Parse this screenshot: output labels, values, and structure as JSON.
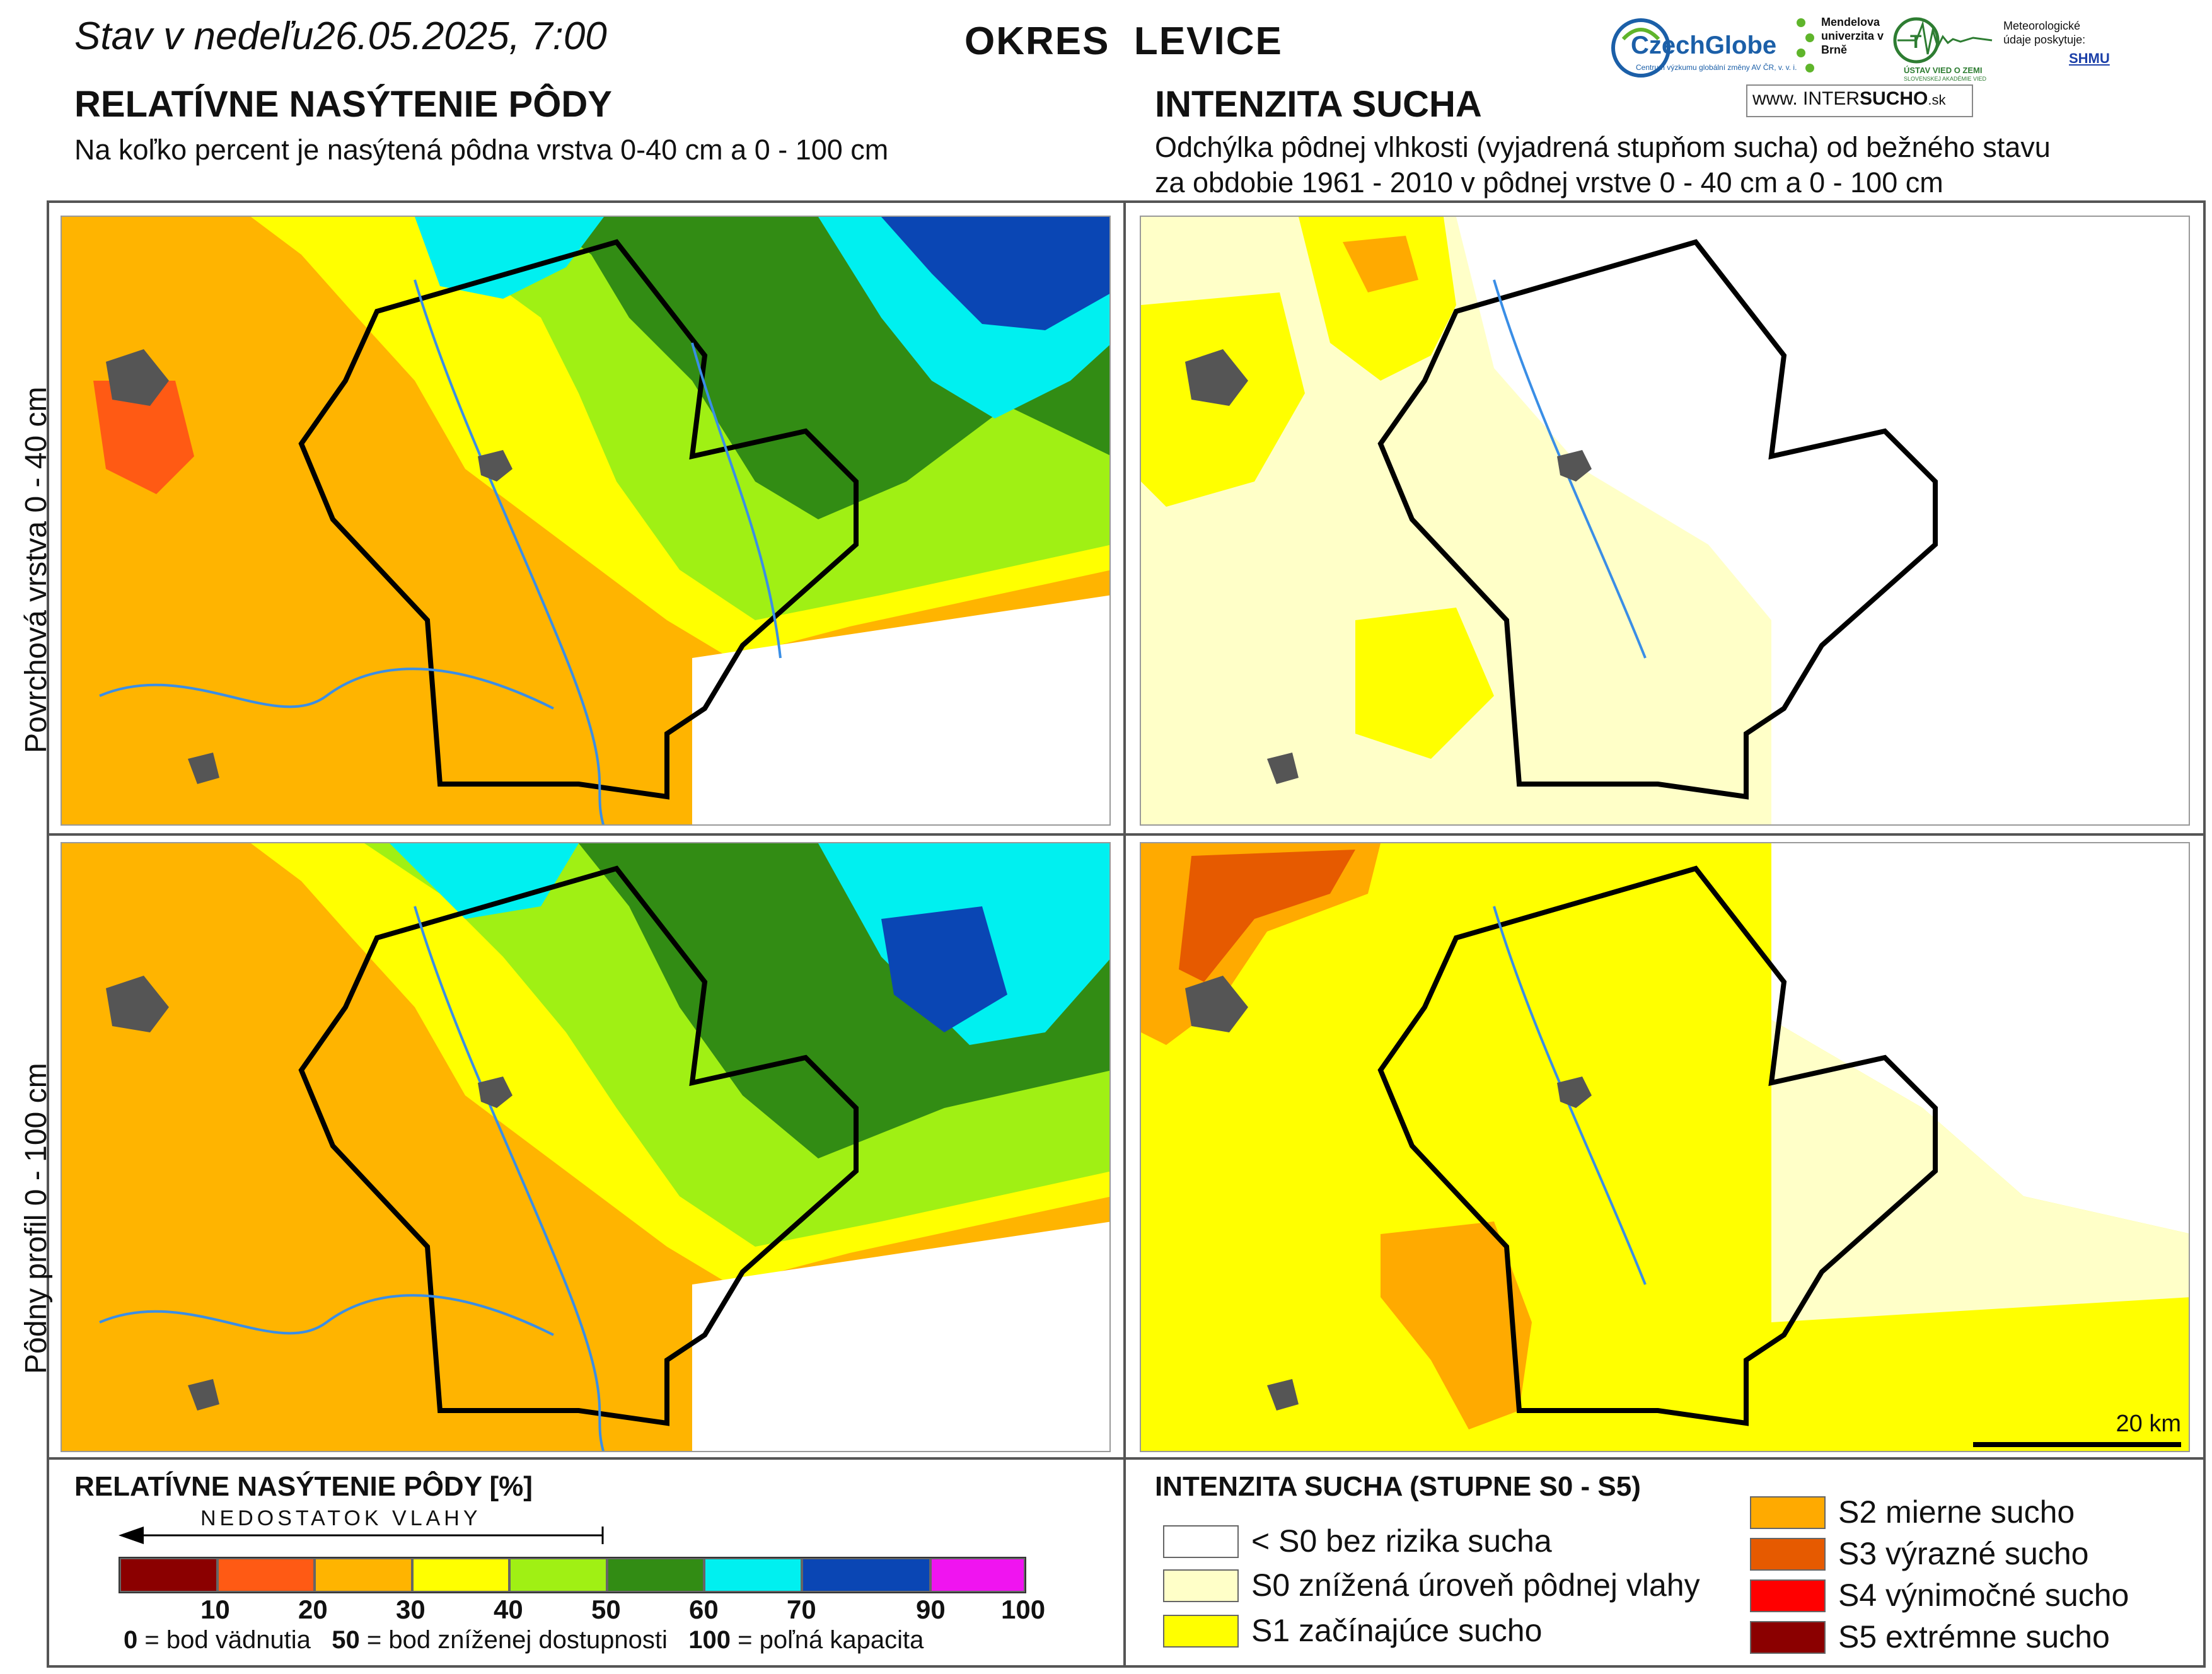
{
  "header": {
    "date_prefix": "Stav v nedeľu",
    "date_value": "26.05.2025, 7:00",
    "district": "OKRES  LEVICE"
  },
  "logos": {
    "czechglobe": "CzechGlobe",
    "czechglobe_sub": "Centrum výzkumu globální změny AV ČR, v. v. i.",
    "mendel": "Mendelova univerzita v Brně",
    "uvz": "ÚSTAV VIED O ZEMI",
    "uvz_sub": "SLOVENSKEJ AKADÉMIE VIED",
    "meteo": "Meteorologické údaje poskytuje:",
    "shmu": "SHMU",
    "intersucho_www": "www.",
    "intersucho_inter": "INTER",
    "intersucho_sucho": "SUCHO",
    "intersucho_sk": ".sk"
  },
  "left_section": {
    "title": "RELATÍVNE NASÝTENIE PÔDY",
    "subtitle": "Na koľko percent je nasýtená pôdna vrstva 0-40 cm a 0 - 100 cm"
  },
  "right_section": {
    "title": "INTENZITA SUCHA",
    "subtitle_line1": "Odchýlka pôdnej vlhkosti (vyjadrená stupňom sucha) od bežného stavu",
    "subtitle_line2": "za obdobie 1961 - 2010 v pôdnej vrstve 0 - 40 cm a 0 - 100 cm"
  },
  "row_labels": {
    "top": "Povrchová vrstva 0 - 40 cm",
    "bottom": "Pôdny profil 0 - 100 cm"
  },
  "scale_bar": {
    "label": "20 km"
  },
  "saturation_legend": {
    "title": "RELATÍVNE NASÝTENIE PÔDY [%]",
    "arrow_label": "NEDOSTATOK VLAHY",
    "bins": [
      {
        "color": "#8b0000"
      },
      {
        "color": "#ff5a14"
      },
      {
        "color": "#ffb400"
      },
      {
        "color": "#ffff00"
      },
      {
        "color": "#a0f014"
      },
      {
        "color": "#328c14"
      },
      {
        "color": "#00f0f0"
      },
      {
        "color": "#0a46b4"
      },
      {
        "color": "#f014f0"
      }
    ],
    "ticks": [
      "10",
      "20",
      "30",
      "40",
      "50",
      "60",
      "70",
      "90",
      "100"
    ],
    "note_0_num": "0",
    "note_0_text": "= bod vädnutia",
    "note_50_num": "50",
    "note_50_text": "= bod zníženej dostupnosti",
    "note_100_num": "100",
    "note_100_text": "= poľná kapacita"
  },
  "drought_legend": {
    "title": "INTENZITA SUCHA (STUPNE S0 - S5)",
    "items_left": [
      {
        "label": "< S0 bez rizika sucha",
        "color": "#ffffff"
      },
      {
        "label": "S0 znížená úroveň pôdnej vlahy",
        "color": "#ffffc8"
      },
      {
        "label": "S1 začínajúce sucho",
        "color": "#ffff00"
      }
    ],
    "items_right": [
      {
        "label": "S2 mierne sucho",
        "color": "#ffaa00"
      },
      {
        "label": "S3 výrazné sucho",
        "color": "#e65a00"
      },
      {
        "label": "S4 výnimočné sucho",
        "color": "#ff0000"
      },
      {
        "label": "S5 extrémne sucho",
        "color": "#8b0000"
      }
    ]
  }
}
